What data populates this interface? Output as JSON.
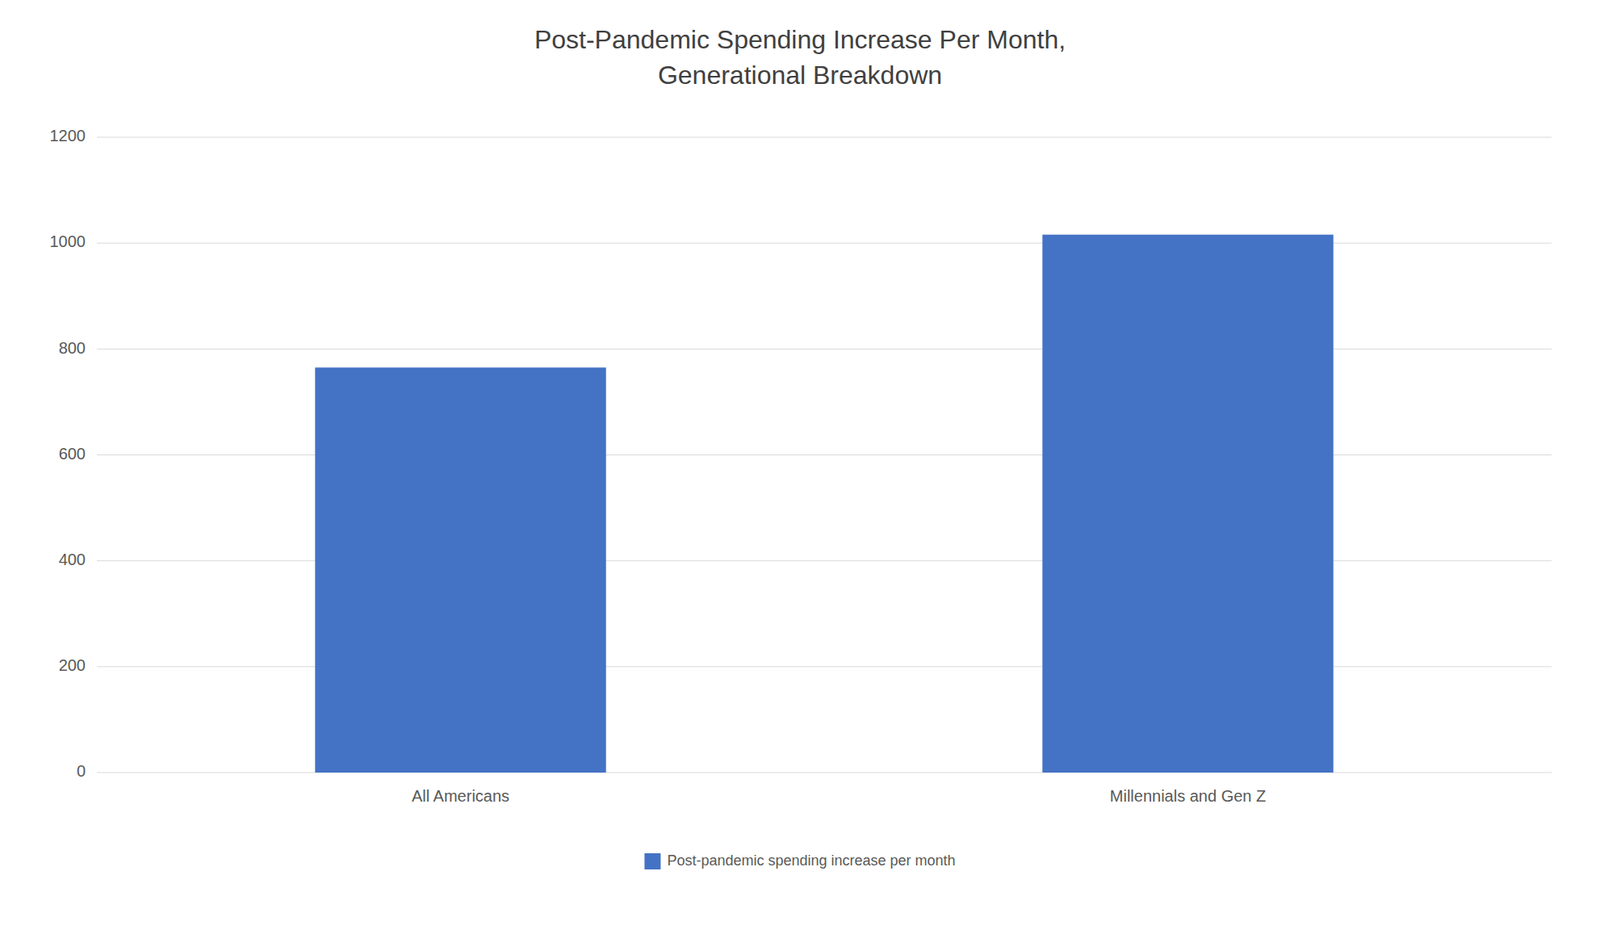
{
  "chart_data": {
    "type": "bar",
    "title": "Post-Pandemic Spending Increase Per Month,\nGenerational Breakdown",
    "categories": [
      "All Americans",
      "Millennials and Gen Z"
    ],
    "series": [
      {
        "name": "Post-pandemic spending increase per month",
        "color": "#4472C4",
        "values": [
          765,
          1016
        ]
      }
    ],
    "ylim": [
      0,
      1200
    ],
    "yticks": [
      0,
      200,
      400,
      600,
      800,
      1000,
      1200
    ],
    "grid": true,
    "legend": "bottom"
  }
}
